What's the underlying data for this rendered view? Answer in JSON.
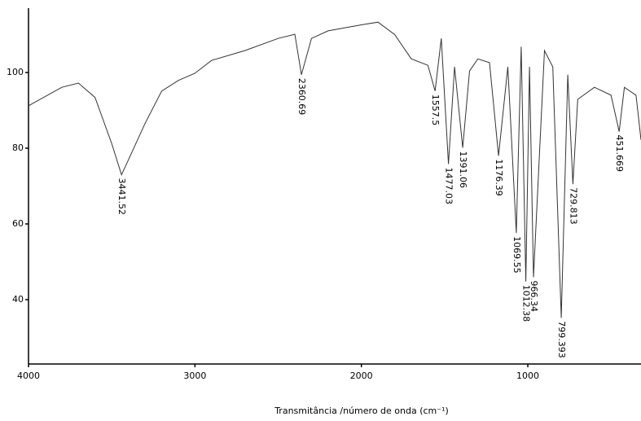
{
  "chart_data": {
    "type": "line",
    "x_label": "Transmitância /número de onda (cm⁻¹)",
    "x": [
      4000,
      3800,
      3700,
      3600,
      3500,
      3441,
      3400,
      3300,
      3200,
      3100,
      3000,
      2900,
      2700,
      2500,
      2400,
      2360,
      2300,
      2200,
      2000,
      1900,
      1800,
      1700,
      1600,
      1557,
      1520,
      1477,
      1440,
      1391,
      1350,
      1300,
      1230,
      1176,
      1120,
      1069,
      1040,
      1012,
      990,
      966,
      900,
      850,
      799,
      760,
      729,
      700,
      600,
      500,
      451,
      420,
      350,
      320
    ],
    "y": [
      91.2,
      96.1,
      97.2,
      93.4,
      81.2,
      73.0,
      76.9,
      86.5,
      95.1,
      97.9,
      99.8,
      103.2,
      105.8,
      109.0,
      110.1,
      99.4,
      109.0,
      111.0,
      112.6,
      113.3,
      110.0,
      103.6,
      101.9,
      95.1,
      109.0,
      75.8,
      101.5,
      80.1,
      100.4,
      103.6,
      102.6,
      78.0,
      101.5,
      57.6,
      106.8,
      44.8,
      101.5,
      45.9,
      105.8,
      101.5,
      35.2,
      99.4,
      70.5,
      92.9,
      96.1,
      94.0,
      84.4,
      96.1,
      94.0,
      82.2
    ],
    "color": "#333333",
    "peaks": [
      3441.52,
      2360.69,
      1557.5,
      1477.03,
      1391.06,
      1176.39,
      1069.55,
      1012.38,
      966.34,
      799.393,
      729.813,
      451.669
    ],
    "xlim": [
      4000,
      320
    ],
    "xticks": [
      4000,
      3000,
      2000,
      1000
    ],
    "ylim": [
      23,
      117
    ],
    "yticks": [
      100,
      80,
      60,
      40
    ]
  }
}
